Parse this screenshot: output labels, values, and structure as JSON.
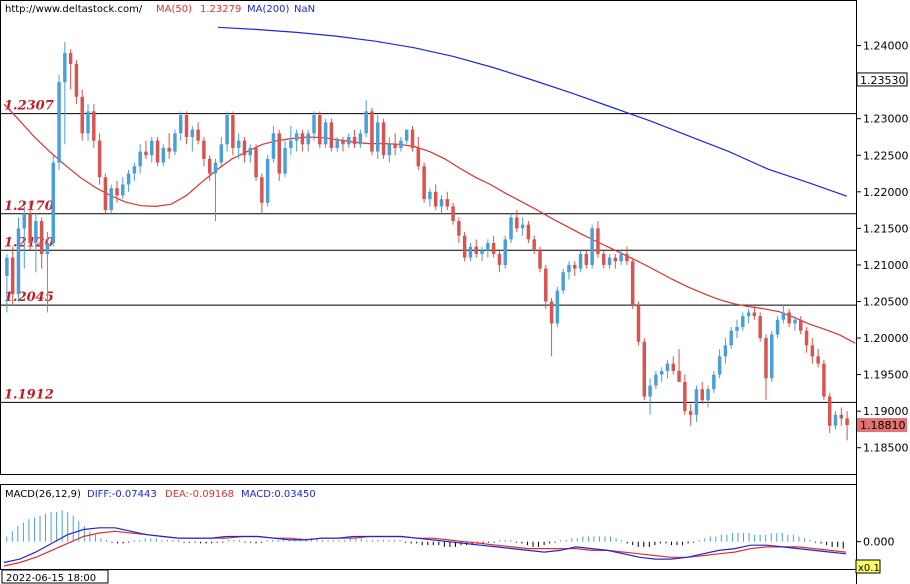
{
  "header": {
    "url": "http://www.deltastock.com/",
    "ma50_label": "MA(50)",
    "ma50_value": "1.23279",
    "ma200_label": "MA(200)",
    "ma200_value": "NaN"
  },
  "macd_header": {
    "name": "MACD(26,12,9)",
    "diff": "DIFF:-0.07443",
    "dea": "DEA:-0.09168",
    "macd": "MACD:0.03450"
  },
  "footer": {
    "timestamp": "2022-06-15 18:00",
    "zoom": "x0.1"
  },
  "colors": {
    "up": "#4a9fd8",
    "down": "#d9534f",
    "ma50": "#e03030",
    "ma200": "#1e28d0",
    "level_text": "#c8181e",
    "last_price_bg": "#e57373",
    "macd_diff": "#1e28d0",
    "macd_dea": "#e03030"
  },
  "chart_data": [
    {
      "type": "candlestick",
      "title": "",
      "ylim": [
        1.1825,
        1.2435
      ],
      "y_ticks": [
        "1.24000",
        "1.23500",
        "1.23000",
        "1.22500",
        "1.22000",
        "1.21500",
        "1.21000",
        "1.20500",
        "1.20000",
        "1.19500",
        "1.19000",
        "1.18500"
      ],
      "tag_top": "1.23530",
      "tag_last": "1.18810",
      "levels": [
        {
          "label": "1.2307",
          "value": 1.2307
        },
        {
          "label": "1.2170",
          "value": 1.217
        },
        {
          "label": "1.2120",
          "value": 1.212
        },
        {
          "label": "1.2045",
          "value": 1.2045
        },
        {
          "label": "1.1912",
          "value": 1.1912
        }
      ],
      "candles": [
        [
          1.2085,
          1.2115,
          1.2035,
          1.211
        ],
        [
          1.211,
          1.2125,
          1.2045,
          1.206
        ],
        [
          1.206,
          1.2165,
          1.205,
          1.215
        ],
        [
          1.215,
          1.218,
          1.2095,
          1.217
        ],
        [
          1.217,
          1.2185,
          1.212,
          1.213
        ],
        [
          1.213,
          1.217,
          1.209,
          1.216
        ],
        [
          1.216,
          1.2165,
          1.2095,
          1.2115
        ],
        [
          1.2115,
          1.2145,
          1.2035,
          1.213
        ],
        [
          1.213,
          1.225,
          1.2125,
          1.224
        ],
        [
          1.224,
          1.236,
          1.223,
          1.235
        ],
        [
          1.235,
          1.2405,
          1.2265,
          1.239
        ],
        [
          1.239,
          1.2395,
          1.234,
          1.2375
        ],
        [
          1.2375,
          1.238,
          1.232,
          1.233
        ],
        [
          1.233,
          1.234,
          1.227,
          1.228
        ],
        [
          1.228,
          1.232,
          1.227,
          1.231
        ],
        [
          1.231,
          1.232,
          1.226,
          1.227
        ],
        [
          1.227,
          1.228,
          1.221,
          1.222
        ],
        [
          1.222,
          1.2225,
          1.217,
          1.2175
        ],
        [
          1.2175,
          1.221,
          1.217,
          1.2205
        ],
        [
          1.2205,
          1.2215,
          1.2185,
          1.2195
        ],
        [
          1.2195,
          1.222,
          1.219,
          1.221
        ],
        [
          1.221,
          1.223,
          1.22,
          1.2225
        ],
        [
          1.2225,
          1.224,
          1.2215,
          1.2235
        ],
        [
          1.2235,
          1.2265,
          1.2225,
          1.2255
        ],
        [
          1.2255,
          1.227,
          1.2245,
          1.225
        ],
        [
          1.225,
          1.2275,
          1.224,
          1.227
        ],
        [
          1.227,
          1.2275,
          1.2235,
          1.224
        ],
        [
          1.224,
          1.2265,
          1.2235,
          1.226
        ],
        [
          1.226,
          1.228,
          1.2245,
          1.2255
        ],
        [
          1.2255,
          1.2285,
          1.225,
          1.228
        ],
        [
          1.228,
          1.231,
          1.227,
          1.2305
        ],
        [
          1.2305,
          1.231,
          1.2265,
          1.2275
        ],
        [
          1.2275,
          1.229,
          1.2255,
          1.2285
        ],
        [
          1.2285,
          1.2295,
          1.2265,
          1.227
        ],
        [
          1.227,
          1.2275,
          1.2235,
          1.2245
        ],
        [
          1.2245,
          1.225,
          1.2215,
          1.2225
        ],
        [
          1.2225,
          1.2245,
          1.216,
          1.224
        ],
        [
          1.224,
          1.2275,
          1.2235,
          1.2265
        ],
        [
          1.2265,
          1.231,
          1.2255,
          1.2305
        ],
        [
          1.2305,
          1.231,
          1.225,
          1.226
        ],
        [
          1.226,
          1.228,
          1.2245,
          1.227
        ],
        [
          1.227,
          1.2275,
          1.224,
          1.225
        ],
        [
          1.225,
          1.2265,
          1.224,
          1.226
        ],
        [
          1.226,
          1.2265,
          1.2215,
          1.222
        ],
        [
          1.222,
          1.2225,
          1.217,
          1.2185
        ],
        [
          1.2185,
          1.225,
          1.218,
          1.2245
        ],
        [
          1.2245,
          1.229,
          1.224,
          1.228
        ],
        [
          1.228,
          1.2285,
          1.2215,
          1.2225
        ],
        [
          1.2225,
          1.227,
          1.222,
          1.226
        ],
        [
          1.226,
          1.229,
          1.225,
          1.227
        ],
        [
          1.227,
          1.2285,
          1.2255,
          1.228
        ],
        [
          1.228,
          1.2285,
          1.2255,
          1.2265
        ],
        [
          1.2265,
          1.2285,
          1.2255,
          1.228
        ],
        [
          1.228,
          1.231,
          1.227,
          1.2305
        ],
        [
          1.2305,
          1.231,
          1.226,
          1.2265
        ],
        [
          1.2265,
          1.23,
          1.226,
          1.2295
        ],
        [
          1.2295,
          1.23,
          1.2255,
          1.226
        ],
        [
          1.226,
          1.2275,
          1.2255,
          1.227
        ],
        [
          1.227,
          1.2275,
          1.2255,
          1.2265
        ],
        [
          1.2265,
          1.228,
          1.226,
          1.2275
        ],
        [
          1.2275,
          1.2285,
          1.226,
          1.2265
        ],
        [
          1.2265,
          1.2285,
          1.226,
          1.228
        ],
        [
          1.228,
          1.2325,
          1.2275,
          1.231
        ],
        [
          1.231,
          1.2315,
          1.225,
          1.2255
        ],
        [
          1.2255,
          1.2305,
          1.2245,
          1.2295
        ],
        [
          1.2295,
          1.23,
          1.2245,
          1.225
        ],
        [
          1.225,
          1.2275,
          1.224,
          1.2265
        ],
        [
          1.2265,
          1.228,
          1.225,
          1.226
        ],
        [
          1.226,
          1.2275,
          1.2255,
          1.227
        ],
        [
          1.227,
          1.2285,
          1.2265,
          1.2285
        ],
        [
          1.2285,
          1.229,
          1.2255,
          1.226
        ],
        [
          1.226,
          1.2275,
          1.223,
          1.2235
        ],
        [
          1.2235,
          1.224,
          1.2185,
          1.219
        ],
        [
          1.219,
          1.2205,
          1.218,
          1.22
        ],
        [
          1.22,
          1.221,
          1.2175,
          1.218
        ],
        [
          1.218,
          1.2195,
          1.217,
          1.219
        ],
        [
          1.219,
          1.22,
          1.2175,
          1.218
        ],
        [
          1.218,
          1.2185,
          1.2155,
          1.216
        ],
        [
          1.216,
          1.2165,
          1.213,
          1.214
        ],
        [
          1.214,
          1.2145,
          1.2105,
          1.211
        ],
        [
          1.211,
          1.213,
          1.2105,
          1.2125
        ],
        [
          1.2125,
          1.2135,
          1.211,
          1.2115
        ],
        [
          1.2115,
          1.2125,
          1.2105,
          1.212
        ],
        [
          1.212,
          1.2135,
          1.211,
          1.213
        ],
        [
          1.213,
          1.214,
          1.211,
          1.2115
        ],
        [
          1.2115,
          1.212,
          1.209,
          1.21
        ],
        [
          1.21,
          1.214,
          1.2095,
          1.2135
        ],
        [
          1.2135,
          1.217,
          1.213,
          1.2165
        ],
        [
          1.2165,
          1.2175,
          1.2145,
          1.215
        ],
        [
          1.215,
          1.2165,
          1.214,
          1.2155
        ],
        [
          1.2155,
          1.216,
          1.213,
          1.2135
        ],
        [
          1.2135,
          1.214,
          1.2115,
          1.212
        ],
        [
          1.212,
          1.2125,
          1.209,
          1.2095
        ],
        [
          1.2095,
          1.21,
          1.204,
          1.205
        ],
        [
          1.205,
          1.2055,
          1.1975,
          1.202
        ],
        [
          1.202,
          1.207,
          1.2015,
          1.2065
        ],
        [
          1.2065,
          1.2095,
          1.206,
          1.209
        ],
        [
          1.209,
          1.2105,
          1.208,
          1.21
        ],
        [
          1.21,
          1.2105,
          1.2085,
          1.2095
        ],
        [
          1.2095,
          1.212,
          1.209,
          1.2115
        ],
        [
          1.2115,
          1.212,
          1.2095,
          1.21
        ],
        [
          1.21,
          1.2155,
          1.2095,
          1.215
        ],
        [
          1.215,
          1.216,
          1.211,
          1.2115
        ],
        [
          1.2115,
          1.212,
          1.2095,
          1.21
        ],
        [
          1.21,
          1.2115,
          1.2095,
          1.211
        ],
        [
          1.211,
          1.2115,
          1.2095,
          1.2105
        ],
        [
          1.2105,
          1.212,
          1.21,
          1.2115
        ],
        [
          1.2115,
          1.2125,
          1.21,
          1.2105
        ],
        [
          1.2105,
          1.211,
          1.204,
          1.2045
        ],
        [
          1.2045,
          1.205,
          1.199,
          1.1995
        ],
        [
          1.1995,
          1.2,
          1.1915,
          1.192
        ],
        [
          1.192,
          1.1945,
          1.1895,
          1.1935
        ],
        [
          1.1935,
          1.1955,
          1.193,
          1.195
        ],
        [
          1.195,
          1.196,
          1.194,
          1.1955
        ],
        [
          1.1955,
          1.197,
          1.1945,
          1.1965
        ],
        [
          1.1965,
          1.1975,
          1.195,
          1.1955
        ],
        [
          1.1955,
          1.1985,
          1.1945,
          1.194
        ],
        [
          1.194,
          1.195,
          1.1895,
          1.19
        ],
        [
          1.19,
          1.191,
          1.188,
          1.1895
        ],
        [
          1.1895,
          1.1935,
          1.1885,
          1.193
        ],
        [
          1.193,
          1.194,
          1.191,
          1.1915
        ],
        [
          1.1915,
          1.1935,
          1.1905,
          1.193
        ],
        [
          1.193,
          1.1955,
          1.1925,
          1.195
        ],
        [
          1.195,
          1.1985,
          1.1945,
          1.1975
        ],
        [
          1.1975,
          1.2,
          1.1965,
          1.199
        ],
        [
          1.199,
          1.2015,
          1.1985,
          1.201
        ],
        [
          1.201,
          1.2025,
          1.2,
          1.2015
        ],
        [
          1.2015,
          1.2035,
          1.201,
          1.203
        ],
        [
          1.203,
          1.204,
          1.202,
          1.2035
        ],
        [
          1.2035,
          1.2045,
          1.2025,
          1.203
        ],
        [
          1.203,
          1.2035,
          1.1995,
          1.2
        ],
        [
          1.2,
          1.2005,
          1.1915,
          1.1945
        ],
        [
          1.1945,
          1.201,
          1.194,
          1.2005
        ],
        [
          1.2005,
          1.203,
          1.2,
          1.2025
        ],
        [
          1.2025,
          1.2045,
          1.202,
          1.2035
        ],
        [
          1.2035,
          1.204,
          1.2015,
          1.202
        ],
        [
          1.202,
          1.203,
          1.201,
          1.2025
        ],
        [
          1.2025,
          1.203,
          1.2005,
          1.201
        ],
        [
          1.201,
          1.2015,
          1.198,
          1.199
        ],
        [
          1.199,
          1.2,
          1.1965,
          1.1975
        ],
        [
          1.1975,
          1.1985,
          1.196,
          1.1965
        ],
        [
          1.1965,
          1.197,
          1.1915,
          1.192
        ],
        [
          1.192,
          1.1925,
          1.187,
          1.188
        ],
        [
          1.188,
          1.19,
          1.1875,
          1.1895
        ],
        [
          1.1895,
          1.1905,
          1.188,
          1.189
        ],
        [
          1.189,
          1.19,
          1.186,
          1.1881
        ]
      ],
      "ma50": [
        1.232,
        1.2298,
        1.2275,
        1.2255,
        1.2237,
        1.222,
        1.2206,
        1.2195,
        1.2186,
        1.2181,
        1.218,
        1.2183,
        1.2195,
        1.2213,
        1.223,
        1.2245,
        1.2255,
        1.2265,
        1.227,
        1.2273,
        1.2275,
        1.2274,
        1.2271,
        1.2268,
        1.2266,
        1.2266,
        1.2265,
        1.2262,
        1.2255,
        1.2245,
        1.2232,
        1.222,
        1.221,
        1.2198,
        1.2187,
        1.2176,
        1.2164,
        1.2153,
        1.2142,
        1.2132,
        1.2122,
        1.2112,
        1.2102,
        1.2091,
        1.208,
        1.207,
        1.2061,
        1.2053,
        1.2047,
        1.2043,
        1.204,
        1.2036,
        1.2028,
        1.2019,
        1.2012,
        1.2004,
        1.1993
      ],
      "ma50_x_start": 4,
      "ma50_x_step": 15.2,
      "ma200": [
        1.2425,
        1.2422,
        1.2418,
        1.2413,
        1.2406,
        1.2397,
        1.2385,
        1.237,
        1.2353,
        1.2335,
        1.2316,
        1.2297,
        1.2276,
        1.2255,
        1.2231,
        1.2213,
        1.2194
      ],
      "ma200_x_start": 218,
      "ma200_x_step": 39.3
    },
    {
      "type": "bar+line",
      "title": "MACD(26,12,9)",
      "ylim": [
        -0.14,
        0.24
      ],
      "y_ticks": [
        "0.000"
      ],
      "histogram": [
        0.03,
        0.06,
        0.09,
        0.11,
        0.13,
        0.14,
        0.15,
        0.16,
        0.17,
        0.17,
        0.18,
        0.17,
        0.15,
        0.12,
        0.09,
        0.06,
        0.04,
        0.02,
        0.01,
        0.0,
        -0.01,
        -0.01,
        0.0,
        0.01,
        0.01,
        0.02,
        0.02,
        0.02,
        0.01,
        0.01,
        0.01,
        0.01,
        0.0,
        0.0,
        0.0,
        -0.01,
        -0.01,
        -0.01,
        0.0,
        0.0,
        0.01,
        0.01,
        0.01,
        0.0,
        0.0,
        -0.01,
        0.0,
        0.01,
        0.01,
        0.01,
        0.01,
        0.01,
        0.01,
        0.02,
        0.02,
        0.02,
        0.01,
        0.01,
        0.01,
        0.01,
        0.01,
        0.01,
        0.02,
        0.02,
        0.02,
        0.01,
        0.01,
        0.01,
        0.01,
        0.01,
        0.01,
        0.01,
        0.0,
        -0.01,
        -0.01,
        -0.02,
        -0.02,
        -0.02,
        -0.02,
        -0.03,
        -0.03,
        -0.03,
        -0.02,
        -0.02,
        -0.02,
        -0.01,
        -0.01,
        0.0,
        0.0,
        0.01,
        0.01,
        0.01,
        0.0,
        -0.01,
        -0.02,
        -0.03,
        -0.03,
        -0.02,
        -0.01,
        0.0,
        0.01,
        0.01,
        0.02,
        0.02,
        0.03,
        0.03,
        0.03,
        0.03,
        0.03,
        0.03,
        0.02,
        0.01,
        -0.01,
        -0.02,
        -0.03,
        -0.03,
        -0.03,
        -0.02,
        -0.01,
        -0.01,
        -0.02,
        -0.02,
        -0.02,
        -0.01,
        0.0,
        0.01,
        0.02,
        0.03,
        0.03,
        0.04,
        0.04,
        0.05,
        0.05,
        0.05,
        0.05,
        0.04,
        0.04,
        0.04,
        0.05,
        0.05,
        0.05,
        0.04,
        0.04,
        0.03,
        0.02,
        0.01,
        0.0,
        -0.01,
        -0.02,
        -0.03,
        -0.03,
        -0.04
      ],
      "diff": [
        -0.12,
        -0.1,
        -0.06,
        -0.01,
        0.04,
        0.07,
        0.08,
        0.08,
        0.06,
        0.04,
        0.03,
        0.02,
        0.02,
        0.02,
        0.03,
        0.03,
        0.03,
        0.02,
        0.01,
        0.01,
        0.02,
        0.02,
        0.03,
        0.03,
        0.03,
        0.03,
        0.02,
        0.01,
        0.0,
        -0.01,
        -0.02,
        -0.03,
        -0.04,
        -0.05,
        -0.06,
        -0.05,
        -0.03,
        -0.04,
        -0.05,
        -0.07,
        -0.09,
        -0.1,
        -0.1,
        -0.09,
        -0.07,
        -0.05,
        -0.04,
        -0.02,
        -0.02,
        -0.03,
        -0.04,
        -0.05,
        -0.06,
        -0.07
      ],
      "dea": [
        -0.14,
        -0.12,
        -0.09,
        -0.05,
        -0.01,
        0.03,
        0.05,
        0.06,
        0.05,
        0.04,
        0.03,
        0.02,
        0.02,
        0.02,
        0.02,
        0.03,
        0.03,
        0.02,
        0.02,
        0.01,
        0.02,
        0.02,
        0.02,
        0.03,
        0.03,
        0.03,
        0.02,
        0.02,
        0.01,
        0.0,
        -0.01,
        -0.02,
        -0.03,
        -0.04,
        -0.04,
        -0.04,
        -0.04,
        -0.05,
        -0.05,
        -0.06,
        -0.07,
        -0.08,
        -0.09,
        -0.09,
        -0.08,
        -0.07,
        -0.06,
        -0.04,
        -0.03,
        -0.03,
        -0.03,
        -0.04,
        -0.05,
        -0.06
      ]
    }
  ]
}
